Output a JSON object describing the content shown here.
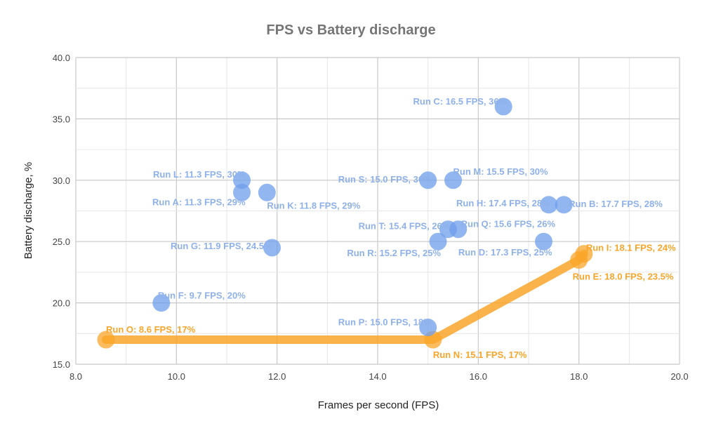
{
  "chart_data": {
    "type": "scatter",
    "title": "FPS vs Battery discharge",
    "xlabel": "Frames per second (FPS)",
    "ylabel": "Battery discharge, %",
    "xlim": [
      8.0,
      20.0
    ],
    "ylim": [
      15.0,
      40.0
    ],
    "x_ticks": [
      "8.0",
      "10.0",
      "12.0",
      "14.0",
      "16.0",
      "18.0",
      "20.0"
    ],
    "y_ticks": [
      "15.0",
      "20.0",
      "25.0",
      "30.0",
      "35.0",
      "40.0"
    ],
    "grid": true,
    "legend": "none",
    "colors": {
      "points": "#6d9eeb",
      "labels": "#8fb1ea",
      "highlight": "#f9a52a"
    },
    "points": [
      {
        "run": "Run A",
        "x": 11.3,
        "y": 29,
        "label": "Run A: 11.3 FPS, 29%",
        "highlight": false
      },
      {
        "run": "Run B",
        "x": 17.7,
        "y": 28,
        "label": "Run B: 17.7 FPS, 28%",
        "highlight": false
      },
      {
        "run": "Run C",
        "x": 16.5,
        "y": 36,
        "label": "Run C: 16.5 FPS, 36%",
        "highlight": false
      },
      {
        "run": "Run D",
        "x": 17.3,
        "y": 25,
        "label": "Run D: 17.3 FPS, 25%",
        "highlight": false
      },
      {
        "run": "Run E",
        "x": 18.0,
        "y": 23.5,
        "label": "Run E: 18.0 FPS, 23.5%",
        "highlight": true
      },
      {
        "run": "Run F",
        "x": 9.7,
        "y": 20,
        "label": "Run F: 9.7 FPS, 20%",
        "highlight": false
      },
      {
        "run": "Run G",
        "x": 11.9,
        "y": 24.5,
        "label": "Run G: 11.9 FPS, 24.5%",
        "highlight": false
      },
      {
        "run": "Run H",
        "x": 17.4,
        "y": 28,
        "label": "Run H: 17.4 FPS, 28%",
        "highlight": false
      },
      {
        "run": "Run I",
        "x": 18.1,
        "y": 24,
        "label": "Run I: 18.1 FPS, 24%",
        "highlight": true
      },
      {
        "run": "Run K",
        "x": 11.8,
        "y": 29,
        "label": "Run K: 11.8 FPS, 29%",
        "highlight": false
      },
      {
        "run": "Run L",
        "x": 11.3,
        "y": 30,
        "label": "Run L: 11.3 FPS, 30%",
        "highlight": false
      },
      {
        "run": "Run M",
        "x": 15.5,
        "y": 30,
        "label": "Run M: 15.5 FPS, 30%",
        "highlight": false
      },
      {
        "run": "Run N",
        "x": 15.1,
        "y": 17,
        "label": "Run N: 15.1 FPS, 17%",
        "highlight": true
      },
      {
        "run": "Run O",
        "x": 8.6,
        "y": 17,
        "label": "Run O: 8.6 FPS, 17%",
        "highlight": true
      },
      {
        "run": "Run P",
        "x": 15.0,
        "y": 18,
        "label": "Run P: 15.0 FPS, 18%",
        "highlight": false
      },
      {
        "run": "Run Q",
        "x": 15.6,
        "y": 26,
        "label": "Run Q: 15.6 FPS, 26%",
        "highlight": false
      },
      {
        "run": "Run R",
        "x": 15.2,
        "y": 25,
        "label": "Run R: 15.2 FPS, 25%",
        "highlight": false
      },
      {
        "run": "Run S",
        "x": 15.0,
        "y": 30,
        "label": "Run S: 15.0 FPS, 30%",
        "highlight": false
      },
      {
        "run": "Run T",
        "x": 15.4,
        "y": 26,
        "label": "Run T: 15.4 FPS, 26%",
        "highlight": false
      }
    ],
    "frontier_line": [
      "Run O",
      "Run N",
      "Run E",
      "Run I"
    ]
  }
}
